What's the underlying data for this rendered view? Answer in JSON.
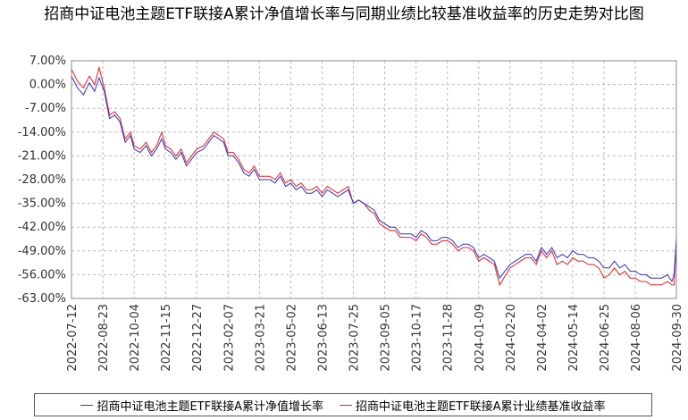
{
  "chart_data": {
    "type": "line",
    "title": "招商中证电池主题ETF联接A累计净值增长率与同期业绩比较基准收益率的历史走势对比图",
    "xlabel": "",
    "ylabel": "",
    "ylim": [
      -63,
      7
    ],
    "y_ticks": [
      "7.00%",
      "0.00%",
      "-7.00%",
      "-14.00%",
      "-21.00%",
      "-28.00%",
      "-35.00%",
      "-42.00%",
      "-49.00%",
      "-56.00%",
      "-63.00%"
    ],
    "y_tick_values": [
      7,
      0,
      -7,
      -14,
      -21,
      -28,
      -35,
      -42,
      -49,
      -56,
      -63
    ],
    "x_ticks": [
      "2022-07-12",
      "2022-08-23",
      "2022-10-04",
      "2022-11-15",
      "2022-12-27",
      "2023-02-07",
      "2023-03-21",
      "2023-05-02",
      "2023-06-13",
      "2023-07-25",
      "2023-09-05",
      "2023-10-17",
      "2023-11-28",
      "2024-01-09",
      "2024-02-20",
      "2024-04-02",
      "2024-05-14",
      "2024-06-25",
      "2024-08-06",
      "2024-09-30"
    ],
    "grid": true,
    "legend_position": "bottom",
    "series": [
      {
        "name": "招商中证电池主题ETF联接A累计净值增长率",
        "color": "#3030c8",
        "x": [
          "2022-07-12",
          "2022-07-20",
          "2022-07-28",
          "2022-08-05",
          "2022-08-12",
          "2022-08-18",
          "2022-08-25",
          "2022-09-01",
          "2022-09-08",
          "2022-09-15",
          "2022-09-22",
          "2022-09-29",
          "2022-10-04",
          "2022-10-12",
          "2022-10-20",
          "2022-10-27",
          "2022-11-03",
          "2022-11-10",
          "2022-11-15",
          "2022-11-22",
          "2022-11-29",
          "2022-12-06",
          "2022-12-13",
          "2022-12-20",
          "2022-12-27",
          "2023-01-05",
          "2023-01-12",
          "2023-01-19",
          "2023-02-01",
          "2023-02-07",
          "2023-02-14",
          "2023-02-21",
          "2023-02-28",
          "2023-03-07",
          "2023-03-14",
          "2023-03-21",
          "2023-03-28",
          "2023-04-04",
          "2023-04-11",
          "2023-04-18",
          "2023-04-25",
          "2023-05-02",
          "2023-05-09",
          "2023-05-16",
          "2023-05-23",
          "2023-05-30",
          "2023-06-06",
          "2023-06-13",
          "2023-06-20",
          "2023-06-27",
          "2023-07-04",
          "2023-07-11",
          "2023-07-18",
          "2023-07-25",
          "2023-08-01",
          "2023-08-08",
          "2023-08-15",
          "2023-08-22",
          "2023-08-29",
          "2023-09-05",
          "2023-09-12",
          "2023-09-19",
          "2023-09-26",
          "2023-10-10",
          "2023-10-17",
          "2023-10-24",
          "2023-10-31",
          "2023-11-07",
          "2023-11-14",
          "2023-11-21",
          "2023-11-28",
          "2023-12-05",
          "2023-12-12",
          "2023-12-19",
          "2023-12-26",
          "2024-01-02",
          "2024-01-09",
          "2024-01-16",
          "2024-01-23",
          "2024-01-30",
          "2024-02-06",
          "2024-02-20",
          "2024-02-27",
          "2024-03-05",
          "2024-03-12",
          "2024-03-19",
          "2024-03-26",
          "2024-04-02",
          "2024-04-09",
          "2024-04-16",
          "2024-04-23",
          "2024-04-30",
          "2024-05-07",
          "2024-05-14",
          "2024-05-21",
          "2024-05-28",
          "2024-06-04",
          "2024-06-11",
          "2024-06-18",
          "2024-06-25",
          "2024-07-02",
          "2024-07-09",
          "2024-07-16",
          "2024-07-23",
          "2024-07-30",
          "2024-08-06",
          "2024-08-13",
          "2024-08-20",
          "2024-08-27",
          "2024-09-03",
          "2024-09-10",
          "2024-09-18",
          "2024-09-24",
          "2024-09-27",
          "2024-09-30"
        ],
        "values": [
          2.5,
          -1,
          -3,
          0.5,
          -2,
          2,
          -2,
          -10,
          -9,
          -11,
          -17,
          -15,
          -19,
          -20,
          -18,
          -21,
          -19,
          -16,
          -19,
          -20,
          -22,
          -20,
          -24,
          -22,
          -20,
          -19,
          -17,
          -15,
          -17,
          -21,
          -21,
          -23,
          -26,
          -27,
          -25,
          -28,
          -28,
          -28,
          -29,
          -27,
          -30,
          -29,
          -31,
          -30,
          -32,
          -32,
          -31,
          -33,
          -31,
          -32,
          -33,
          -32,
          -31,
          -35,
          -34,
          -35,
          -36,
          -37,
          -40,
          -41,
          -42,
          -42,
          -44,
          -44,
          -45,
          -43,
          -44,
          -46,
          -46,
          -45,
          -45,
          -46,
          -48,
          -47,
          -47,
          -48,
          -51,
          -50,
          -51,
          -52,
          -57,
          -53,
          -52,
          -51,
          -50,
          -50,
          -52,
          -48,
          -50,
          -48,
          -51,
          -50,
          -51,
          -49,
          -50,
          -50,
          -51,
          -51,
          -52,
          -54,
          -54,
          -52,
          -54,
          -53,
          -55,
          -55,
          -56,
          -56,
          -57,
          -57,
          -57,
          -56,
          -58,
          -56,
          -45
        ]
      },
      {
        "name": "招商中证电池主题ETF联接A累计业绩基准收益率",
        "color": "#e02020",
        "x": [
          "2022-07-12",
          "2022-07-20",
          "2022-07-28",
          "2022-08-05",
          "2022-08-12",
          "2022-08-18",
          "2022-08-25",
          "2022-09-01",
          "2022-09-08",
          "2022-09-15",
          "2022-09-22",
          "2022-09-29",
          "2022-10-04",
          "2022-10-12",
          "2022-10-20",
          "2022-10-27",
          "2022-11-03",
          "2022-11-10",
          "2022-11-15",
          "2022-11-22",
          "2022-11-29",
          "2022-12-06",
          "2022-12-13",
          "2022-12-20",
          "2022-12-27",
          "2023-01-05",
          "2023-01-12",
          "2023-01-19",
          "2023-02-01",
          "2023-02-07",
          "2023-02-14",
          "2023-02-21",
          "2023-02-28",
          "2023-03-07",
          "2023-03-14",
          "2023-03-21",
          "2023-03-28",
          "2023-04-04",
          "2023-04-11",
          "2023-04-18",
          "2023-04-25",
          "2023-05-02",
          "2023-05-09",
          "2023-05-16",
          "2023-05-23",
          "2023-05-30",
          "2023-06-06",
          "2023-06-13",
          "2023-06-20",
          "2023-06-27",
          "2023-07-04",
          "2023-07-11",
          "2023-07-18",
          "2023-07-25",
          "2023-08-01",
          "2023-08-08",
          "2023-08-15",
          "2023-08-22",
          "2023-08-29",
          "2023-09-05",
          "2023-09-12",
          "2023-09-19",
          "2023-09-26",
          "2023-10-10",
          "2023-10-17",
          "2023-10-24",
          "2023-10-31",
          "2023-11-07",
          "2023-11-14",
          "2023-11-21",
          "2023-11-28",
          "2023-12-05",
          "2023-12-12",
          "2023-12-19",
          "2023-12-26",
          "2024-01-02",
          "2024-01-09",
          "2024-01-16",
          "2024-01-23",
          "2024-01-30",
          "2024-02-06",
          "2024-02-20",
          "2024-02-27",
          "2024-03-05",
          "2024-03-12",
          "2024-03-19",
          "2024-03-26",
          "2024-04-02",
          "2024-04-09",
          "2024-04-16",
          "2024-04-23",
          "2024-04-30",
          "2024-05-07",
          "2024-05-14",
          "2024-05-21",
          "2024-05-28",
          "2024-06-04",
          "2024-06-11",
          "2024-06-18",
          "2024-06-25",
          "2024-07-02",
          "2024-07-09",
          "2024-07-16",
          "2024-07-23",
          "2024-07-30",
          "2024-08-06",
          "2024-08-13",
          "2024-08-20",
          "2024-08-27",
          "2024-09-03",
          "2024-09-10",
          "2024-09-18",
          "2024-09-24",
          "2024-09-27",
          "2024-09-30"
        ],
        "values": [
          4.5,
          1,
          -1,
          2.5,
          0,
          5,
          -1,
          -9,
          -8,
          -10,
          -16,
          -14,
          -18,
          -19,
          -17,
          -20,
          -18,
          -14,
          -18,
          -19,
          -21,
          -19,
          -23,
          -21,
          -19,
          -18,
          -16,
          -14,
          -16,
          -20,
          -20,
          -22,
          -25,
          -26,
          -24,
          -27,
          -27,
          -27,
          -28,
          -26,
          -29,
          -28,
          -30,
          -29,
          -31,
          -31,
          -30,
          -32,
          -30,
          -31,
          -32,
          -31,
          -30,
          -35,
          -34,
          -35,
          -37,
          -38,
          -41,
          -42,
          -43,
          -43,
          -45,
          -45,
          -46,
          -44,
          -45,
          -47,
          -47,
          -46,
          -46,
          -47,
          -49,
          -48,
          -48,
          -49,
          -52,
          -51,
          -52,
          -53,
          -59,
          -54,
          -53,
          -52,
          -51,
          -51,
          -53,
          -49,
          -51,
          -49,
          -53,
          -52,
          -53,
          -51,
          -52,
          -52,
          -53,
          -53,
          -54,
          -57,
          -56,
          -54,
          -56,
          -55,
          -57,
          -57,
          -58,
          -58,
          -59,
          -59,
          -59,
          -58,
          -59,
          -59,
          -47
        ]
      }
    ]
  }
}
